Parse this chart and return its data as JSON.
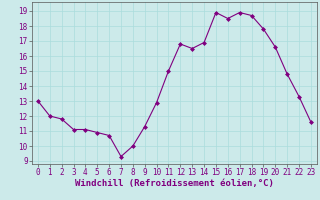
{
  "x": [
    0,
    1,
    2,
    3,
    4,
    5,
    6,
    7,
    8,
    9,
    10,
    11,
    12,
    13,
    14,
    15,
    16,
    17,
    18,
    19,
    20,
    21,
    22,
    23
  ],
  "y": [
    13,
    12,
    11.8,
    11.1,
    11.1,
    10.9,
    10.7,
    9.3,
    10.0,
    11.3,
    12.9,
    15.0,
    16.8,
    16.5,
    16.9,
    18.9,
    18.5,
    18.9,
    18.7,
    17.8,
    16.6,
    14.8,
    13.3,
    11.6
  ],
  "line_color": "#800080",
  "marker": "D",
  "marker_size": 2.0,
  "bg_color": "#cceaea",
  "grid_color": "#aadddd",
  "xlabel": "Windchill (Refroidissement éolien,°C)",
  "xlabel_fontsize": 6.5,
  "tick_fontsize": 5.5,
  "ylim": [
    8.8,
    19.6
  ],
  "xlim": [
    -0.5,
    23.5
  ],
  "yticks": [
    9,
    10,
    11,
    12,
    13,
    14,
    15,
    16,
    17,
    18,
    19
  ],
  "xticks": [
    0,
    1,
    2,
    3,
    4,
    5,
    6,
    7,
    8,
    9,
    10,
    11,
    12,
    13,
    14,
    15,
    16,
    17,
    18,
    19,
    20,
    21,
    22,
    23
  ]
}
